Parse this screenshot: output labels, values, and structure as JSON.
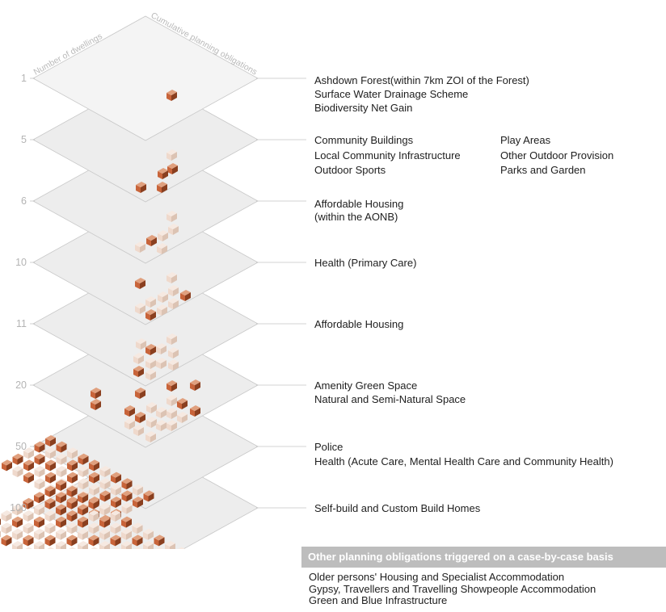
{
  "axis": {
    "dwellings_label": "Number of dwellings",
    "obligations_label": "Cumulative planning obligations"
  },
  "levels": [
    {
      "dwellings": "1",
      "houses_highlighted": 1,
      "houses_total": 1,
      "obligations": [
        "Ashdown Forest(within  7km ZOI  of the Forest)",
        "Surface Water Drainage Scheme",
        "Biodiversity Net Gain"
      ],
      "obligations_col2": []
    },
    {
      "dwellings": "5",
      "houses_highlighted": 4,
      "houses_total": 5,
      "obligations": [
        "Community Buildings",
        "Local Community Infrastructure",
        "Outdoor Sports"
      ],
      "obligations_col2": [
        "Play Areas",
        "Other Outdoor Provision",
        "Parks and Garden"
      ]
    },
    {
      "dwellings": "6",
      "houses_highlighted": 2,
      "houses_total": 6,
      "obligations": [
        "Affordable Housing",
        "(within the AONB)"
      ],
      "obligations_col2": []
    },
    {
      "dwellings": "10",
      "houses_highlighted": 3,
      "houses_total": 10,
      "obligations": [
        "Health (Primary Care)"
      ],
      "obligations_col2": []
    },
    {
      "dwellings": "11",
      "houses_highlighted": 2,
      "houses_total": 11,
      "obligations": [
        "Affordable Housing"
      ],
      "obligations_col2": []
    },
    {
      "dwellings": "20",
      "houses_highlighted": 10,
      "houses_total": 20,
      "obligations": [
        "Amenity Green Space",
        "Natural and Semi-Natural Space"
      ],
      "obligations_col2": []
    },
    {
      "dwellings": "50",
      "houses_highlighted": 30,
      "houses_total": 50,
      "obligations": [
        "Police",
        "Health (Acute Care, Mental Health Care and Community Health)"
      ],
      "obligations_col2": []
    },
    {
      "dwellings": "100",
      "houses_highlighted": 50,
      "houses_total": 100,
      "obligations": [
        "Self-build and Custom Build Homes"
      ],
      "obligations_col2": []
    }
  ],
  "other": {
    "title": "Other planning obligations triggered on a case-by-case basis",
    "items": [
      "Older persons' Housing and Specialist Accommodation",
      "Gypsy, Travellers  and Travelling  Showpeople Accommodation",
      "Green and Blue Infrastructure"
    ]
  },
  "colors": {
    "house_highlight": "#c8643a",
    "house_faded": "#efd9cc",
    "plane": "#ededed",
    "header_bg": "#bdbdbd"
  }
}
